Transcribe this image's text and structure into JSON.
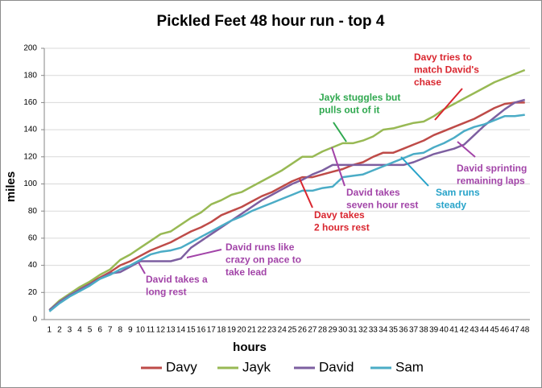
{
  "chart_data": {
    "type": "line",
    "title": "Pickled Feet 48 hour run - top 4",
    "x_label": "hours",
    "y_label": "miles",
    "categories": [
      1,
      2,
      3,
      4,
      5,
      6,
      7,
      8,
      9,
      10,
      11,
      12,
      13,
      14,
      15,
      16,
      17,
      18,
      19,
      20,
      21,
      22,
      23,
      24,
      25,
      26,
      27,
      28,
      29,
      30,
      31,
      32,
      33,
      34,
      35,
      36,
      37,
      38,
      39,
      40,
      41,
      42,
      43,
      44,
      45,
      46,
      47,
      48
    ],
    "ylim": [
      0,
      200
    ],
    "yticks": [
      0,
      20,
      40,
      60,
      80,
      100,
      120,
      140,
      160,
      180,
      200
    ],
    "grid": true,
    "legend": "bottom",
    "series": [
      {
        "name": "Davy",
        "color": "#be4b48",
        "values": [
          7,
          13,
          18,
          23,
          27,
          31,
          35,
          40,
          43,
          47,
          51,
          54,
          57,
          61,
          65,
          68,
          72,
          77,
          80,
          83,
          87,
          91,
          94,
          98,
          102,
          105,
          105,
          107,
          109,
          111,
          114,
          116,
          120,
          123,
          123,
          126,
          129,
          132,
          136,
          139,
          142,
          145,
          148,
          152,
          156,
          159,
          160,
          160
        ]
      },
      {
        "name": "Jayk",
        "color": "#98b954",
        "values": [
          7,
          14,
          19,
          24,
          28,
          33,
          37,
          44,
          48,
          53,
          58,
          63,
          65,
          70,
          75,
          79,
          85,
          88,
          92,
          94,
          98,
          102,
          106,
          110,
          115,
          120,
          120,
          124,
          127,
          130,
          130,
          132,
          135,
          140,
          141,
          143,
          145,
          146,
          150,
          155,
          159,
          163,
          167,
          171,
          175,
          178,
          181,
          184
        ]
      },
      {
        "name": "David",
        "color": "#7d5fa0",
        "values": [
          7,
          13,
          18,
          22,
          26,
          30,
          34,
          35,
          39,
          43,
          43,
          43,
          43,
          45,
          53,
          58,
          63,
          68,
          73,
          78,
          83,
          88,
          92,
          96,
          100,
          103,
          107,
          110,
          114,
          114,
          114,
          114,
          114,
          114,
          114,
          114,
          116,
          119,
          122,
          124,
          126,
          129,
          136,
          143,
          149,
          155,
          160,
          162
        ]
      },
      {
        "name": "Sam",
        "color": "#4bacc6",
        "values": [
          6,
          12,
          17,
          21,
          25,
          30,
          33,
          37,
          40,
          44,
          48,
          50,
          51,
          53,
          57,
          61,
          65,
          69,
          73,
          76,
          80,
          83,
          86,
          89,
          92,
          95,
          95,
          97,
          98,
          105,
          106,
          107,
          110,
          113,
          116,
          119,
          122,
          123,
          127,
          130,
          134,
          139,
          142,
          144,
          147,
          150,
          150,
          151
        ]
      }
    ],
    "annotations": [
      {
        "lines": [
          "Jayk stuggles but",
          "pulls out of it"
        ],
        "color": "#2fa84f"
      },
      {
        "lines": [
          "Davy tries to",
          "match David's",
          "chase"
        ],
        "color": "#d9262f"
      },
      {
        "lines": [
          "David sprinting",
          "remaining laps"
        ],
        "color": "#a244a8"
      },
      {
        "lines": [
          "Sam runs",
          "steady"
        ],
        "color": "#27a3c9"
      },
      {
        "lines": [
          "David takes",
          "seven hour rest"
        ],
        "color": "#a244a8"
      },
      {
        "lines": [
          "Davy takes",
          "2 hours rest"
        ],
        "color": "#d9262f"
      },
      {
        "lines": [
          "David runs like",
          "crazy on pace to",
          "take lead"
        ],
        "color": "#a244a8"
      },
      {
        "lines": [
          "David takes a",
          "long rest"
        ],
        "color": "#a244a8"
      }
    ]
  }
}
